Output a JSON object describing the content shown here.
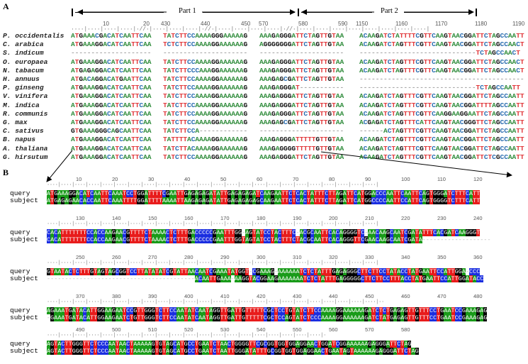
{
  "panel_a": {
    "label": "A",
    "part1_label": "Part 1",
    "part2_label": "Part 2",
    "ruler_ticks": [
      "10",
      "20",
      "430",
      "440",
      "450",
      "570",
      "580",
      "590",
      "1150",
      "1160",
      "1170",
      "1180",
      "1190"
    ],
    "species": [
      {
        "name": "P. occidentalis",
        "seg1": "ATGAAACGACATCAATTCAA",
        "seg2": "TATCTTCCAAAAGGGAAAAAG",
        "seg3": "AAAGAGGGATTCTAGTTGTAA",
        "seg4": "ACAAGATCTATTTTCGTTCAAGTAACGGATTCTAGCCAATT"
      },
      {
        "name": "C. arabica",
        "seg1": "ATGAAAGGACATCAATTCAA",
        "seg2": "TCTCTTCCAAAAGGAAAAAAG",
        "seg3": "AGGGGGGGATTCTAGTTGTAA",
        "seg4": "ACAAGATCTAGTTTCGTTCAAGTAACGGATTCTAGCCAACT"
      },
      {
        "name": "S. indicum",
        "seg1": "--------------------",
        "seg2": "---------------------",
        "seg3": "---------------------",
        "seg4": "-----------------------------TCTAGCCAACT"
      },
      {
        "name": "O. europaea",
        "seg1": "ATGAAAGGACATCAATTCAA",
        "seg2": "TATCTTCCAAAAGGAAAAAAG",
        "seg3": "AAAGAGGGATTCTAGTTGTAA",
        "seg4": "ACAAGATCTAGTTTCGTTCAAGTAACGGATTCTAGCCAACT"
      },
      {
        "name": "N. tabacum",
        "seg1": "ATGAGAGGACATCAATTCAA",
        "seg2": "TATCTTCCCAAAGGAAAAAAG",
        "seg3": "AAAGAGGGATTCTAGTTGTAA",
        "seg4": "ACAAGATCTAGTTTCGTTCAAGTAACGGATTCTAGCCAACT"
      },
      {
        "name": "H. annuus",
        "seg1": "ATGACAGGACATGAATTCAA",
        "seg2": "TATCTTCCAAAAGGAAAAAAG",
        "seg3": "AAAGAGCGATTCTAGTTGTAA",
        "seg4": "-----------------------------------------"
      },
      {
        "name": "P. ginseng",
        "seg1": "ATGAAAGGACATCAATTCAA",
        "seg2": "TATCTTCCAAAAGGAAAAAAG",
        "seg3": "AAAGAGGGAT-----------",
        "seg4": "-----------------------------TCTAGCCAATT"
      },
      {
        "name": "V. vinifera",
        "seg1": "ATGAAAGGACATCAATTCAA",
        "seg2": "TATCTTCCAAAAGGAAAAAAG",
        "seg3": "AAAGAGGGATTCTAGTTGTAA",
        "seg4": "ACAAGATCTAGTTTCGTTCAAGTAACGGATTCTAGCCAATT"
      },
      {
        "name": "M. indica",
        "seg1": "ATGAAAGGACATCAATTCAA",
        "seg2": "TATCTTCCAAAAGGAAAAAAG",
        "seg3": "AAAGAGGGATTCTAGTTGTAA",
        "seg4": "ACAAGATCTAGTTTCGTTCAAGTAACGGATTTTAGCCAATT"
      },
      {
        "name": "R. communis",
        "seg1": "ATGAAAGGACATCAATTCAA",
        "seg2": "TATCTTCCAAAAGGAAAAAAG",
        "seg3": "AAAGAGGGATTCTAGTTGTAA",
        "seg4": "ACAAGATCTAGTTTCGTTCAAGGAAGGAATTCTAGCCAATT"
      },
      {
        "name": "G. max",
        "seg1": "ATGAAAGGACATCAATTCAA",
        "seg2": "TATCTTCCAAAAGGAAAAAAG",
        "seg3": "AAAGAGCGATTCTAGTTGTAA",
        "seg4": "ACGAGATCTAGTTTCATTCAAGTAACGGGTTCTAGCCAATT"
      },
      {
        "name": "C. sativus",
        "seg1": "GTGAAAGGGCAGCAATTCAA",
        "seg2": "TATCTTCCA------------",
        "seg3": "---------------------",
        "seg4": "------ACTAGTTTCGTTCAAGTAACGGATTCTAGCCAATT"
      },
      {
        "name": "B. napus",
        "seg1": "ATGAAAGGACATCAATTCAA",
        "seg2": "TATTTTACAAAAGGAAAAAAG",
        "seg3": "AAAGAGGGATTTTTGTTGTAA",
        "seg4": "ACAAGATCTAGTTTCGTTCAAGTAACGGATTCTAGCCAATT"
      },
      {
        "name": "A. thaliana",
        "seg1": "ATGAAAGGACATCAATTCAA",
        "seg2": "TATCTTACAAAAGGAAAAAAG",
        "seg3": "AAAGAGGGGTTTTTGTTGTAA",
        "seg4": "ACAAGATCTAGTTTCGTTCAAGTAACGGATTCTAGCCAATT"
      },
      {
        "name": "G. hirsutum",
        "seg1": "ATGAAAGGACATCAATTCAA",
        "seg2": "TATCTTCCAAAAGGAAAAAAG",
        "seg3": "AAAGAGGGATTCTAGTTGTAA",
        "seg4": "ACAAGATCTAGTTTCGTTCAAGTAACGGATTCTCGCCAATT"
      }
    ]
  },
  "panel_b": {
    "label": "B",
    "query_label": "query",
    "subject_label": "subject",
    "blocks": [
      {
        "ticks": [
          "10",
          "20",
          "30",
          "40",
          "50",
          "60",
          "70",
          "80",
          "90",
          "100",
          "110",
          "120"
        ],
        "query": "ATGAAAGGACATCAATTCAAATCCTGGATTTTCGAATTGAGAGAGATATTGAGAGAGATCAAGAATTCTCACTATTTCTTAGATTCATGGACCCAATTCAATTCAGTGGGATCTTTCATT",
        "subject": "ATGAGAGAACACCAATTCAAATTTTGGATTTTAAAATTAAGAGAGATATTGAGAGAGAGCAAGAATTCTCACTATTTCTTAGATTCATGGCCCCAATTCCATTCAGTGGGGTCTTTCATT"
      },
      {
        "ticks": [
          "130",
          "140",
          "150",
          "160",
          "170",
          "180",
          "190",
          "200",
          "210",
          "220",
          "230",
          "240"
        ],
        "query": "CACATTTTTTTCCACCAAGAACGTTTTCTAAAACTCTTTGACCCCCGAATTTGG-AGTATCCTACTTTC-ACGCAATTCACAGGGGTC-AACAAGCAATCGATATTTCACGATCAAGGGT",
        "subject": "CACATTTTTTTCCACCAAGAACGTTTTCTAAAACTCTTTGACCCCCGAATTTGGTAGTATCCTACTTTCTACGCAATTCACAGGGTTCGAACAAGCAATCGATA-------------------"
      },
      {
        "ticks": [
          "250",
          "260",
          "270",
          "280",
          "290",
          "300",
          "310",
          "320",
          "330",
          "340",
          "350",
          "360"
        ],
        "query": "GTAATACTCTTTGTAGTAGCGGTCCTTATATATCGTATTAACAATCGAAATATGGT-CGAAAG-AAAAAATCTCTATTTGAGAGGGCTTCTTCCTATACCTATGAATTCCATTGGA-CCC",
        "subject": "-----------------------------------------ACAATTGAAA-AAGGTACGGAAGAAAAAAATCTCTATTTGAGGGGGCTTCTTCCTTTACCTATGAATTCCATTGGATACC"
      },
      {
        "ticks": [
          "370",
          "380",
          "390",
          "400",
          "410",
          "420",
          "430",
          "440",
          "450",
          "460",
          "470",
          "480"
        ],
        "query": "AGAAATGATACATTGGAAGAATCCGTTGGGTCTTCCAATATCAATAGGTTGATTGTTTTTCGCTCCTGTATCTTCCAAAAGGAAAAAAGATCTCTGAGAGTTGTTTCCTGAATCCGAAAGAG",
        "subject": "-GAAATGATACATTGGAAGAATCTGTTGGGTCTTCCAATATCAATAGGTTGATTGTTTTTCGCTCCAGTATCTCCCAAAAGGAAAAAAGATCTATGAGAGTTGTTTCCTGAATCCGAAAGAG"
      },
      {
        "ticks": [
          "490",
          "500",
          "510",
          "520",
          "530",
          "540",
          "550",
          "560",
          "570",
          "580"
        ],
        "query": "AGTACTTGGGTTCTCCCAATAACTAAAAAGTGTAGCATGCCTGAATCTAACTGGGGTTCGCGGTGGTGGAGGAACTGGATCGGAAAAAAGAGGGATTCTAG",
        "subject": "AGTACTTGGGTTCTCCCAATAACTAAAAAGTGTAGCATGCCTGAATCTAATTGGGATATTTGCGGTGGTGGAGGAACTGAATAGTAAAAAAGAGGGATTCTAG"
      }
    ]
  },
  "colors": {
    "A": "#1a9b1a",
    "T": "#e81b1b",
    "C": "#1a2ee0",
    "G": "#000000",
    "gap": "#ffffff"
  }
}
